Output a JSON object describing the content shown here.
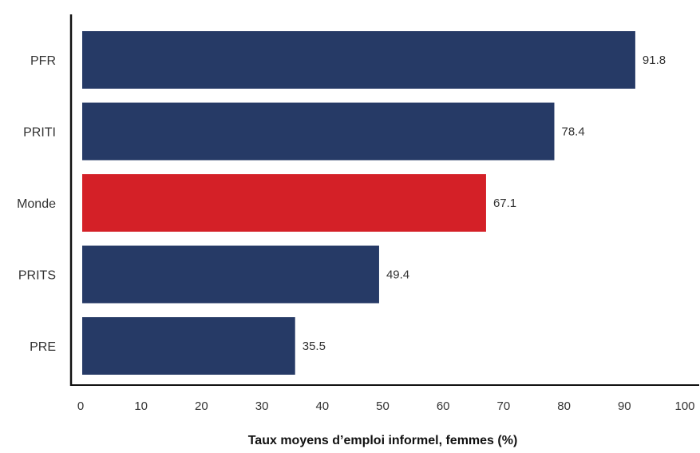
{
  "chart_data": {
    "type": "bar",
    "orientation": "horizontal",
    "categories": [
      "PFR",
      "PRITI",
      "Monde",
      "PRITS",
      "PRE"
    ],
    "values": [
      91.8,
      78.4,
      67.1,
      49.4,
      35.5
    ],
    "value_labels": [
      "91.8",
      "78.4",
      "67.1",
      "49.4",
      "35.5"
    ],
    "bar_colors": [
      "#263a66",
      "#263a66",
      "#d42027",
      "#263a66",
      "#263a66"
    ],
    "title": "",
    "xlabel": "Taux moyens d’emploi informel, femmes (%)",
    "ylabel": "",
    "xlim": [
      0,
      100
    ],
    "xticks": [
      0,
      10,
      20,
      30,
      40,
      50,
      60,
      70,
      80,
      90,
      100
    ],
    "xtick_labels": [
      "0",
      "10",
      "20",
      "30",
      "40",
      "50",
      "60",
      "70",
      "80",
      "90",
      "100"
    ],
    "grid": false,
    "legend": "none"
  },
  "colors": {
    "primary_bar": "#263a66",
    "highlight_bar": "#d42027",
    "axis": "#111111",
    "text": "#333333"
  }
}
